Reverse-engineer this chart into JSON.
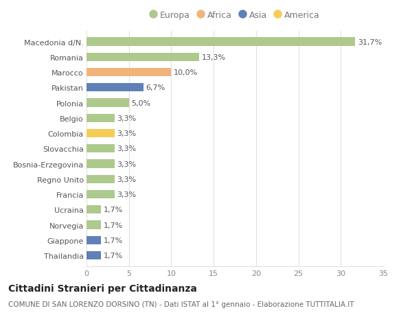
{
  "title": "Cittadini Stranieri per Cittadinanza",
  "subtitle": "COMUNE DI SAN LORENZO DORSINO (TN) - Dati ISTAT al 1° gennaio - Elaborazione TUTTITALIA.IT",
  "categories": [
    "Macedonia d/N.",
    "Romania",
    "Marocco",
    "Pakistan",
    "Polonia",
    "Belgio",
    "Colombia",
    "Slovacchia",
    "Bosnia-Erzegovina",
    "Regno Unito",
    "Francia",
    "Ucraina",
    "Norvegia",
    "Giappone",
    "Thailandia"
  ],
  "values": [
    31.7,
    13.3,
    10.0,
    6.7,
    5.0,
    3.3,
    3.3,
    3.3,
    3.3,
    3.3,
    3.3,
    1.7,
    1.7,
    1.7,
    1.7
  ],
  "labels": [
    "31,7%",
    "13,3%",
    "10,0%",
    "6,7%",
    "5,0%",
    "3,3%",
    "3,3%",
    "3,3%",
    "3,3%",
    "3,3%",
    "3,3%",
    "1,7%",
    "1,7%",
    "1,7%",
    "1,7%"
  ],
  "continents": [
    "Europa",
    "Europa",
    "Africa",
    "Asia",
    "Europa",
    "Europa",
    "America",
    "Europa",
    "Europa",
    "Europa",
    "Europa",
    "Europa",
    "Europa",
    "Asia",
    "Asia"
  ],
  "continent_colors": {
    "Europa": "#aec98c",
    "Africa": "#f0b47a",
    "Asia": "#6080b8",
    "America": "#f5cc55"
  },
  "legend_order": [
    "Europa",
    "Africa",
    "Asia",
    "America"
  ],
  "xlim": [
    0,
    35
  ],
  "xticks": [
    0,
    5,
    10,
    15,
    20,
    25,
    30,
    35
  ],
  "background_color": "#ffffff",
  "grid_color": "#e0e0e0",
  "bar_height": 0.55,
  "title_fontsize": 10,
  "subtitle_fontsize": 7.5,
  "label_fontsize": 8,
  "tick_fontsize": 8,
  "legend_fontsize": 9
}
